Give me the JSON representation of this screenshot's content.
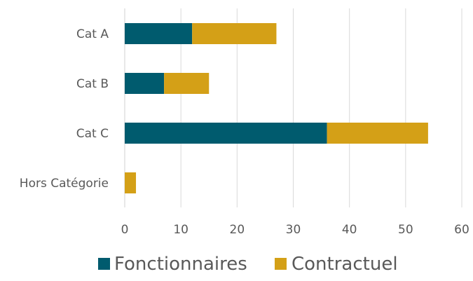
{
  "chart_data": {
    "type": "bar",
    "orientation": "horizontal",
    "stacked": true,
    "categories": [
      "Cat A",
      "Cat B",
      "Cat C",
      "Hors Catégorie"
    ],
    "series": [
      {
        "name": "Fonctionnaires",
        "values": [
          12,
          7,
          36,
          0
        ],
        "color": "#005b6e"
      },
      {
        "name": "Contractuel",
        "values": [
          15,
          8,
          18,
          2
        ],
        "color": "#d4a017"
      }
    ],
    "xlim": [
      0,
      60
    ],
    "xticks": [
      "0",
      "10",
      "20",
      "30",
      "40",
      "50",
      "60"
    ],
    "grid": true,
    "legend_position": "bottom"
  }
}
